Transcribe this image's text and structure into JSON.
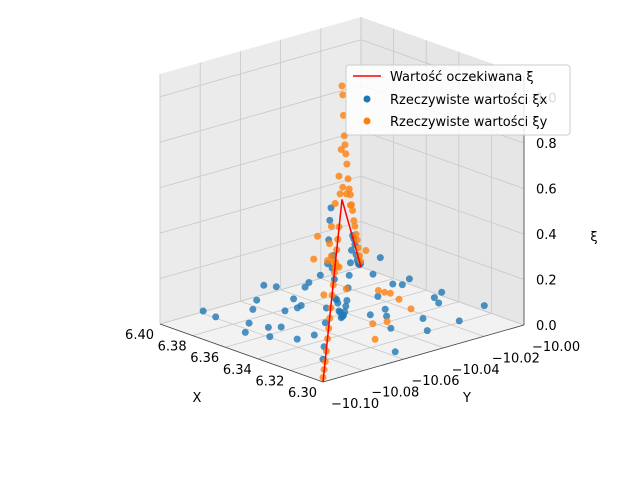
{
  "chart_data": {
    "type": "scatter",
    "projection": "3d",
    "title": "",
    "xlabel": "X",
    "ylabel": "Y",
    "zlabel": "ξ",
    "xlim": [
      6.3,
      6.4
    ],
    "ylim": [
      -10.1,
      -10.0
    ],
    "zlim": [
      0.0,
      1.1
    ],
    "x_ticks": [
      "6.30",
      "6.32",
      "6.34",
      "6.36",
      "6.38",
      "6.40"
    ],
    "y_ticks": [
      "−10.10",
      "−10.08",
      "−10.06",
      "−10.04",
      "−10.02",
      "−10.00"
    ],
    "z_ticks": [
      "0.0",
      "0.2",
      "0.4",
      "0.6",
      "0.8",
      "1.0"
    ],
    "grid": true,
    "legend_position": "top-right",
    "legend": [
      "Wartość oczekiwana ξ",
      "Rzeczywiste wartości ξx",
      "Rzeczywiste wartości ξy"
    ],
    "colors": {
      "expected": "#ff0000",
      "xi_x": "#1f77b4",
      "xi_y": "#ff7f0e"
    },
    "series": [
      {
        "name": "Wartość oczekiwana ξ",
        "kind": "line",
        "points": [
          [
            6.3,
            -10.1,
            0.0
          ],
          [
            6.35,
            -10.05,
            0.55
          ],
          [
            6.4,
            -10.0,
            0.0
          ]
        ]
      },
      {
        "name": "Rzeczywiste wartości ξx",
        "kind": "scatter",
        "points": [
          [
            6.3,
            -10.1,
            0.1
          ],
          [
            6.303,
            -10.097,
            0.14
          ],
          [
            6.306,
            -10.094,
            0.23
          ],
          [
            6.309,
            -10.091,
            0.28
          ],
          [
            6.312,
            -10.088,
            0.46
          ],
          [
            6.315,
            -10.085,
            0.55
          ],
          [
            6.318,
            -10.082,
            0.62
          ],
          [
            6.321,
            -10.079,
            0.66
          ],
          [
            6.324,
            -10.076,
            0.38
          ],
          [
            6.327,
            -10.073,
            0.42
          ],
          [
            6.33,
            -10.07,
            0.3
          ],
          [
            6.333,
            -10.067,
            0.2
          ],
          [
            6.336,
            -10.064,
            0.18
          ],
          [
            6.339,
            -10.061,
            0.15
          ],
          [
            6.342,
            -10.058,
            0.1
          ],
          [
            6.345,
            -10.055,
            0.08
          ],
          [
            6.348,
            -10.052,
            0.04
          ],
          [
            6.351,
            -10.049,
            0.03
          ],
          [
            6.354,
            -10.046,
            0.02
          ],
          [
            6.357,
            -10.043,
            0.02
          ],
          [
            6.36,
            -10.04,
            0.03
          ],
          [
            6.363,
            -10.037,
            0.04
          ],
          [
            6.366,
            -10.034,
            0.08
          ],
          [
            6.369,
            -10.031,
            0.12
          ],
          [
            6.372,
            -10.028,
            0.16
          ],
          [
            6.375,
            -10.025,
            0.2
          ],
          [
            6.378,
            -10.022,
            0.25
          ],
          [
            6.381,
            -10.019,
            0.22
          ],
          [
            6.384,
            -10.016,
            0.18
          ],
          [
            6.387,
            -10.013,
            0.12
          ],
          [
            6.39,
            -10.01,
            0.08
          ],
          [
            6.393,
            -10.007,
            0.05
          ],
          [
            6.396,
            -10.004,
            0.03
          ],
          [
            6.399,
            -10.001,
            0.02
          ],
          [
            6.305,
            -10.06,
            0.02
          ],
          [
            6.31,
            -10.04,
            0.05
          ],
          [
            6.315,
            -10.02,
            0.03
          ],
          [
            6.32,
            -10.05,
            0.06
          ],
          [
            6.325,
            -10.03,
            0.04
          ],
          [
            6.33,
            -10.08,
            0.08
          ],
          [
            6.335,
            -10.04,
            0.05
          ],
          [
            6.34,
            -10.01,
            0.02
          ],
          [
            6.345,
            -10.09,
            0.06
          ],
          [
            6.35,
            -10.02,
            0.1
          ],
          [
            6.355,
            -10.07,
            0.15
          ],
          [
            6.36,
            -10.09,
            0.04
          ],
          [
            6.365,
            -10.06,
            0.06
          ],
          [
            6.37,
            -10.08,
            0.03
          ],
          [
            6.375,
            -10.05,
            0.02
          ],
          [
            6.38,
            -10.07,
            0.04
          ],
          [
            6.385,
            -10.04,
            0.05
          ],
          [
            6.39,
            -10.06,
            0.03
          ],
          [
            6.395,
            -10.03,
            0.02
          ],
          [
            6.312,
            -10.01,
            0.08
          ],
          [
            6.322,
            -10.095,
            0.12
          ],
          [
            6.332,
            -10.015,
            0.1
          ],
          [
            6.342,
            -10.035,
            0.05
          ],
          [
            6.352,
            -10.085,
            0.07
          ],
          [
            6.362,
            -10.015,
            0.06
          ],
          [
            6.372,
            -10.095,
            0.09
          ],
          [
            6.382,
            -10.005,
            0.1
          ],
          [
            6.392,
            -10.085,
            0.04
          ],
          [
            6.318,
            -10.03,
            0.15
          ],
          [
            6.338,
            -10.09,
            0.12
          ],
          [
            6.358,
            -10.01,
            0.08
          ],
          [
            6.378,
            -10.06,
            0.12
          ],
          [
            6.398,
            -10.05,
            0.05
          ],
          [
            6.308,
            -10.07,
            0.2
          ],
          [
            6.328,
            -10.05,
            0.18
          ],
          [
            6.348,
            -10.08,
            0.14
          ],
          [
            6.368,
            -10.02,
            0.1
          ],
          [
            6.388,
            -10.03,
            0.07
          ]
        ]
      },
      {
        "name": "Rzeczywiste wartości ξy",
        "kind": "scatter",
        "points": [
          [
            6.3,
            -10.1,
            0.02
          ],
          [
            6.303,
            -10.097,
            0.04
          ],
          [
            6.306,
            -10.094,
            0.06
          ],
          [
            6.309,
            -10.091,
            0.09
          ],
          [
            6.312,
            -10.088,
            0.13
          ],
          [
            6.315,
            -10.085,
            0.16
          ],
          [
            6.318,
            -10.082,
            0.19
          ],
          [
            6.321,
            -10.079,
            0.22
          ],
          [
            6.324,
            -10.076,
            0.26
          ],
          [
            6.327,
            -10.073,
            0.29
          ],
          [
            6.33,
            -10.07,
            0.33
          ],
          [
            6.333,
            -10.067,
            0.36
          ],
          [
            6.336,
            -10.064,
            0.4
          ],
          [
            6.339,
            -10.061,
            0.43
          ],
          [
            6.342,
            -10.058,
            0.47
          ],
          [
            6.345,
            -10.055,
            0.6
          ],
          [
            6.348,
            -10.052,
            0.78
          ],
          [
            6.35,
            -10.05,
            1.05
          ],
          [
            6.352,
            -10.048,
            1.0
          ],
          [
            6.354,
            -10.046,
            0.9
          ],
          [
            6.356,
            -10.044,
            0.8
          ],
          [
            6.358,
            -10.042,
            0.75
          ],
          [
            6.36,
            -10.04,
            0.7
          ],
          [
            6.363,
            -10.037,
            0.64
          ],
          [
            6.366,
            -10.034,
            0.56
          ],
          [
            6.369,
            -10.031,
            0.5
          ],
          [
            6.372,
            -10.028,
            0.46
          ],
          [
            6.375,
            -10.025,
            0.4
          ],
          [
            6.378,
            -10.022,
            0.36
          ],
          [
            6.381,
            -10.019,
            0.3
          ],
          [
            6.384,
            -10.016,
            0.26
          ],
          [
            6.387,
            -10.013,
            0.21
          ],
          [
            6.39,
            -10.01,
            0.17
          ],
          [
            6.393,
            -10.007,
            0.12
          ],
          [
            6.396,
            -10.004,
            0.07
          ],
          [
            6.399,
            -10.001,
            0.03
          ],
          [
            6.305,
            -10.07,
            0.1
          ],
          [
            6.31,
            -10.06,
            0.14
          ],
          [
            6.315,
            -10.05,
            0.2
          ],
          [
            6.32,
            -10.04,
            0.12
          ],
          [
            6.325,
            -10.055,
            0.08
          ],
          [
            6.33,
            -10.045,
            0.18
          ],
          [
            6.335,
            -10.06,
            0.22
          ],
          [
            6.34,
            -10.04,
            0.15
          ],
          [
            6.345,
            -10.03,
            0.1
          ],
          [
            6.355,
            -10.06,
            0.3
          ],
          [
            6.36,
            -10.03,
            0.25
          ],
          [
            6.365,
            -10.05,
            0.35
          ],
          [
            6.37,
            -10.04,
            0.28
          ],
          [
            6.375,
            -10.035,
            0.2
          ],
          [
            6.38,
            -10.03,
            0.15
          ],
          [
            6.385,
            -10.025,
            0.1
          ],
          [
            6.39,
            -10.02,
            0.08
          ],
          [
            6.395,
            -10.015,
            0.05
          ],
          [
            6.318,
            -10.085,
            0.3
          ],
          [
            6.328,
            -10.075,
            0.4
          ],
          [
            6.338,
            -10.065,
            0.5
          ],
          [
            6.348,
            -10.055,
            0.55
          ],
          [
            6.358,
            -10.045,
            0.62
          ],
          [
            6.368,
            -10.035,
            0.52
          ],
          [
            6.378,
            -10.025,
            0.44
          ],
          [
            6.388,
            -10.015,
            0.34
          ]
        ]
      }
    ]
  }
}
